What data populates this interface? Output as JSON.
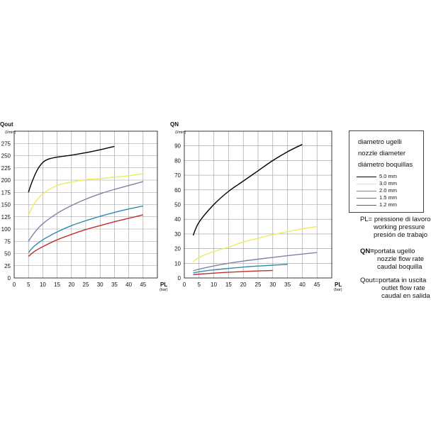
{
  "chart_data": [
    {
      "type": "line",
      "ylabel": "Qout",
      "yunit": "(l/min)",
      "xlabel": "PL",
      "xunit": "(bar)",
      "xlim": [
        0,
        50
      ],
      "ylim": [
        0,
        300
      ],
      "xticks": [
        0,
        5,
        10,
        15,
        20,
        25,
        30,
        35,
        40,
        45
      ],
      "yticks": [
        0,
        25,
        50,
        75,
        100,
        125,
        150,
        175,
        200,
        225,
        250,
        275
      ],
      "grid": true,
      "series": [
        {
          "name": "5.0 mm",
          "color": "#000000",
          "x": [
            5,
            6,
            8,
            10,
            12,
            15,
            20,
            25,
            30,
            35
          ],
          "y": [
            175,
            193,
            220,
            236,
            243,
            247,
            251,
            256,
            262,
            269
          ]
        },
        {
          "name": "3.0 mm",
          "color": "#ecec5c",
          "x": [
            5,
            7,
            10,
            15,
            20,
            25,
            30,
            35,
            40,
            45
          ],
          "y": [
            128,
            152,
            172,
            189,
            196,
            201,
            203,
            206,
            209,
            213
          ]
        },
        {
          "name": "2.0 mm",
          "color": "#8080a8",
          "x": [
            5,
            7,
            10,
            15,
            20,
            25,
            30,
            35,
            40,
            45
          ],
          "y": [
            75,
            92,
            111,
            132,
            148,
            161,
            172,
            181,
            189,
            197
          ]
        },
        {
          "name": "1.5 mm",
          "color": "#2e8ab0",
          "x": [
            5,
            7,
            10,
            15,
            20,
            25,
            30,
            35,
            40,
            45
          ],
          "y": [
            52,
            65,
            78,
            94,
            107,
            117,
            126,
            134,
            141,
            147
          ]
        },
        {
          "name": "1.2 mm",
          "color": "#c03030",
          "x": [
            5,
            7,
            10,
            15,
            20,
            25,
            30,
            35,
            40,
            45
          ],
          "y": [
            44,
            54,
            64,
            78,
            89,
            99,
            107,
            115,
            122,
            129
          ]
        }
      ]
    },
    {
      "type": "line",
      "ylabel": "QN",
      "yunit": "(l/min)",
      "xlabel": "PL",
      "xunit": "(bar)",
      "xlim": [
        0,
        50
      ],
      "ylim": [
        0,
        100
      ],
      "xticks": [
        0,
        5,
        10,
        15,
        20,
        25,
        30,
        35,
        40,
        45
      ],
      "yticks": [
        0,
        10,
        20,
        30,
        40,
        50,
        60,
        70,
        80,
        90
      ],
      "grid": true,
      "series": [
        {
          "name": "5.0 mm",
          "color": "#000000",
          "x": [
            3,
            5,
            10,
            15,
            20,
            25,
            30,
            35,
            40
          ],
          "y": [
            29,
            38,
            50,
            59,
            66,
            73,
            80,
            86,
            91
          ]
        },
        {
          "name": "3.0 mm",
          "color": "#ecec5c",
          "x": [
            3,
            5,
            10,
            15,
            20,
            25,
            30,
            35,
            40,
            45
          ],
          "y": [
            11,
            14,
            18,
            21,
            24.5,
            27,
            29.5,
            31.5,
            33.5,
            35
          ]
        },
        {
          "name": "2.0 mm",
          "color": "#8080a8",
          "x": [
            3,
            5,
            10,
            15,
            20,
            25,
            30,
            35,
            40,
            45
          ],
          "y": [
            4.8,
            6,
            8.2,
            10,
            11.5,
            12.8,
            14,
            15.2,
            16.3,
            17.3
          ]
        },
        {
          "name": "1.5 mm",
          "color": "#2e8ab0",
          "x": [
            3,
            5,
            10,
            15,
            20,
            25,
            30,
            35
          ],
          "y": [
            3.4,
            4.2,
            5.5,
            6.5,
            7.4,
            8.1,
            8.7,
            9.3
          ]
        },
        {
          "name": "1.2 mm",
          "color": "#c03030",
          "x": [
            3,
            5,
            10,
            15,
            20,
            25,
            30
          ],
          "y": [
            2.2,
            2.6,
            3.3,
            3.9,
            4.4,
            4.8,
            5.1
          ]
        }
      ]
    }
  ],
  "legend": {
    "title_lines": [
      "diametro ugelli",
      "nozzle diameter",
      "diámetro boquillas"
    ],
    "items": [
      {
        "label": "5.0 mm",
        "color": "#000000"
      },
      {
        "label": "3.0 mm",
        "color": "#ecec5c"
      },
      {
        "label": "2.0 mm",
        "color": "#8080a8"
      },
      {
        "label": "1.5 mm",
        "color": "#2e8ab0"
      },
      {
        "label": "1.2 mm",
        "color": "#c03030"
      }
    ]
  },
  "definitions": [
    {
      "key": "PL=",
      "lines": [
        "pressione di lavoro",
        "working pressure",
        "presión de trabajo"
      ]
    },
    {
      "key": "QN=",
      "lines": [
        "portata ugello",
        "nozzle flow rate",
        "caudal boquilla"
      ]
    },
    {
      "key": "Qout=",
      "lines": [
        "portata in uscita",
        "outlet flow rate",
        "caudal en salida"
      ]
    }
  ]
}
